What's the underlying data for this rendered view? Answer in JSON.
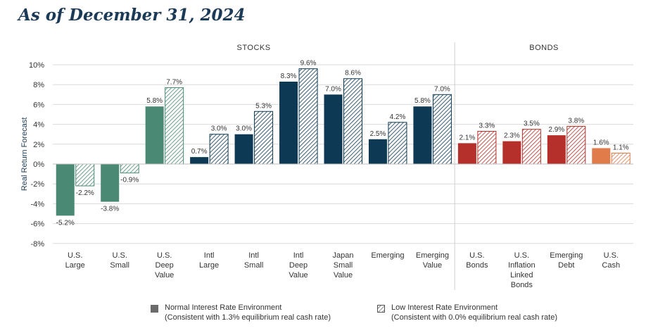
{
  "title": "As of December 31, 2024",
  "chart_data": {
    "type": "bar",
    "ylabel": "Real Return Forecast",
    "ylim": [
      -8,
      10
    ],
    "yticks": [
      10,
      8,
      6,
      4,
      2,
      0,
      -2,
      -4,
      -6,
      -8
    ],
    "ytick_labels": [
      "10%",
      "8%",
      "6%",
      "4%",
      "2%",
      "0%",
      "-2%",
      "-4%",
      "-6%",
      "-8%"
    ],
    "groups": [
      {
        "label": "STOCKS",
        "count": 9
      },
      {
        "label": "BONDS",
        "count": 4
      }
    ],
    "categories": [
      [
        "U.S.",
        "Large"
      ],
      [
        "U.S.",
        "Small"
      ],
      [
        "U.S.",
        "Deep",
        "Value"
      ],
      [
        "Intl",
        "Large"
      ],
      [
        "Intl",
        "Small"
      ],
      [
        "Intl",
        "Deep",
        "Value"
      ],
      [
        "Japan",
        "Small",
        "Value"
      ],
      [
        "Emerging"
      ],
      [
        "Emerging",
        "Value"
      ],
      [
        "U.S.",
        "Bonds"
      ],
      [
        "U.S.",
        "Inflation",
        "Linked",
        "Bonds"
      ],
      [
        "Emerging",
        "Debt"
      ],
      [
        "U.S.",
        "Cash"
      ]
    ],
    "colors": [
      "#4a8a74",
      "#4a8a74",
      "#4a8a74",
      "#0d3954",
      "#0d3954",
      "#0d3954",
      "#0d3954",
      "#0d3954",
      "#0d3954",
      "#b5302a",
      "#b5302a",
      "#b5302a",
      "#e07b4a"
    ],
    "series": [
      {
        "name": "Normal Interest Rate Environment",
        "note": "(Consistent with 1.3% equilibrium real cash rate)",
        "values": [
          -5.2,
          -3.8,
          5.8,
          0.7,
          3.0,
          8.3,
          7.0,
          2.5,
          5.8,
          2.1,
          2.3,
          2.9,
          1.6
        ],
        "labels": [
          "-5.2%",
          "-3.8%",
          "5.8%",
          "0.7%",
          "3.0%",
          "8.3%",
          "7.0%",
          "2.5%",
          "5.8%",
          "2.1%",
          "2.3%",
          "2.9%",
          "1.6%"
        ]
      },
      {
        "name": "Low Interest Rate Environment",
        "note": "(Consistent with 0.0% equilibrium real cash rate)",
        "values": [
          -2.2,
          -0.9,
          7.7,
          3.0,
          5.3,
          9.6,
          8.6,
          4.2,
          7.0,
          3.3,
          3.5,
          3.8,
          1.1
        ],
        "labels": [
          "-2.2%",
          "-0.9%",
          "7.7%",
          "3.0%",
          "5.3%",
          "9.6%",
          "8.6%",
          "4.2%",
          "7.0%",
          "3.3%",
          "3.5%",
          "3.8%",
          "1.1%"
        ]
      }
    ]
  },
  "legend": {
    "normal_label": "Normal Interest Rate Environment",
    "normal_note": "(Consistent with 1.3% equilibrium real cash rate)",
    "low_label": "Low Interest Rate Environment",
    "low_note": "(Consistent with 0.0% equilibrium real cash rate)"
  }
}
